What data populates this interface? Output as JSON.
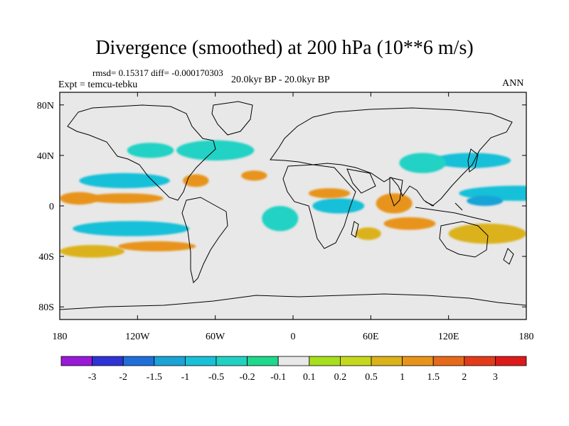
{
  "chart_data": {
    "type": "heatmap",
    "title": "Divergence (smoothed) at 200 hPa (10**6 m/s)",
    "stats_text": "rmsd= 0.15317 diff= -0.000170303",
    "experiment_text": "Expt = temcu-tebku",
    "period_text": "20.0kyr BP - 20.0kyr BP",
    "season_text": "ANN",
    "x_ticks": [
      {
        "value": -180,
        "label": "180"
      },
      {
        "value": -120,
        "label": "120W"
      },
      {
        "value": -60,
        "label": "60W"
      },
      {
        "value": 0,
        "label": "0"
      },
      {
        "value": 60,
        "label": "60E"
      },
      {
        "value": 120,
        "label": "120E"
      },
      {
        "value": 180,
        "label": "180"
      }
    ],
    "y_ticks": [
      {
        "value": 80,
        "label": "80N"
      },
      {
        "value": 40,
        "label": "40N"
      },
      {
        "value": 0,
        "label": "0"
      },
      {
        "value": -40,
        "label": "40S"
      },
      {
        "value": -80,
        "label": "80S"
      }
    ],
    "xlim": [
      -180,
      180
    ],
    "ylim": [
      -90,
      90
    ],
    "colorbar": {
      "colors": [
        "#9a19d8",
        "#2f33d6",
        "#1f6fd9",
        "#19a3d6",
        "#19c0d8",
        "#21d2c4",
        "#1ed88c",
        "#e8e8e8",
        "#a6e01c",
        "#c6d81c",
        "#dcb21a",
        "#e8941b",
        "#e66a1a",
        "#e23b19",
        "#dc1a1a"
      ],
      "labels": [
        "-3",
        "-2",
        "-1.5",
        "-1",
        "-0.5",
        "-0.2",
        "-0.1",
        "0.1",
        "0.2",
        "0.5",
        "1",
        "1.5",
        "2",
        "3"
      ]
    },
    "blobs": [
      {
        "lon": 173,
        "lat": 10,
        "rx": 45,
        "ry": 6,
        "level": 4
      },
      {
        "lon": 148,
        "lat": 4,
        "rx": 14,
        "ry": 4,
        "level": 3
      },
      {
        "lon": 138,
        "lat": 36,
        "rx": 30,
        "ry": 6,
        "level": 4
      },
      {
        "lon": 100,
        "lat": 34,
        "rx": 18,
        "ry": 8,
        "level": 5
      },
      {
        "lon": 35,
        "lat": 0,
        "rx": 20,
        "ry": 6,
        "level": 4
      },
      {
        "lon": -10,
        "lat": -10,
        "rx": 14,
        "ry": 10,
        "level": 5
      },
      {
        "lon": -60,
        "lat": 44,
        "rx": 30,
        "ry": 8,
        "level": 5
      },
      {
        "lon": -110,
        "lat": 44,
        "rx": 18,
        "ry": 6,
        "level": 5
      },
      {
        "lon": -125,
        "lat": -18,
        "rx": 45,
        "ry": 6,
        "level": 4
      },
      {
        "lon": -130,
        "lat": 20,
        "rx": 35,
        "ry": 6,
        "level": 4
      },
      {
        "lon": 150,
        "lat": -22,
        "rx": 30,
        "ry": 8,
        "level": 10
      },
      {
        "lon": 90,
        "lat": -14,
        "rx": 20,
        "ry": 5,
        "level": 11
      },
      {
        "lon": 78,
        "lat": 2,
        "rx": 14,
        "ry": 8,
        "level": 11
      },
      {
        "lon": 58,
        "lat": -22,
        "rx": 10,
        "ry": 5,
        "level": 10
      },
      {
        "lon": 28,
        "lat": 10,
        "rx": 16,
        "ry": 4,
        "level": 11
      },
      {
        "lon": -30,
        "lat": 24,
        "rx": 10,
        "ry": 4,
        "level": 11
      },
      {
        "lon": -75,
        "lat": 20,
        "rx": 10,
        "ry": 5,
        "level": 11
      },
      {
        "lon": -130,
        "lat": 6,
        "rx": 30,
        "ry": 4,
        "level": 11
      },
      {
        "lon": -155,
        "lat": -36,
        "rx": 25,
        "ry": 5,
        "level": 10
      },
      {
        "lon": -105,
        "lat": -32,
        "rx": 30,
        "ry": 4,
        "level": 11
      },
      {
        "lon": -165,
        "lat": 6,
        "rx": 15,
        "ry": 5,
        "level": 11
      }
    ]
  }
}
